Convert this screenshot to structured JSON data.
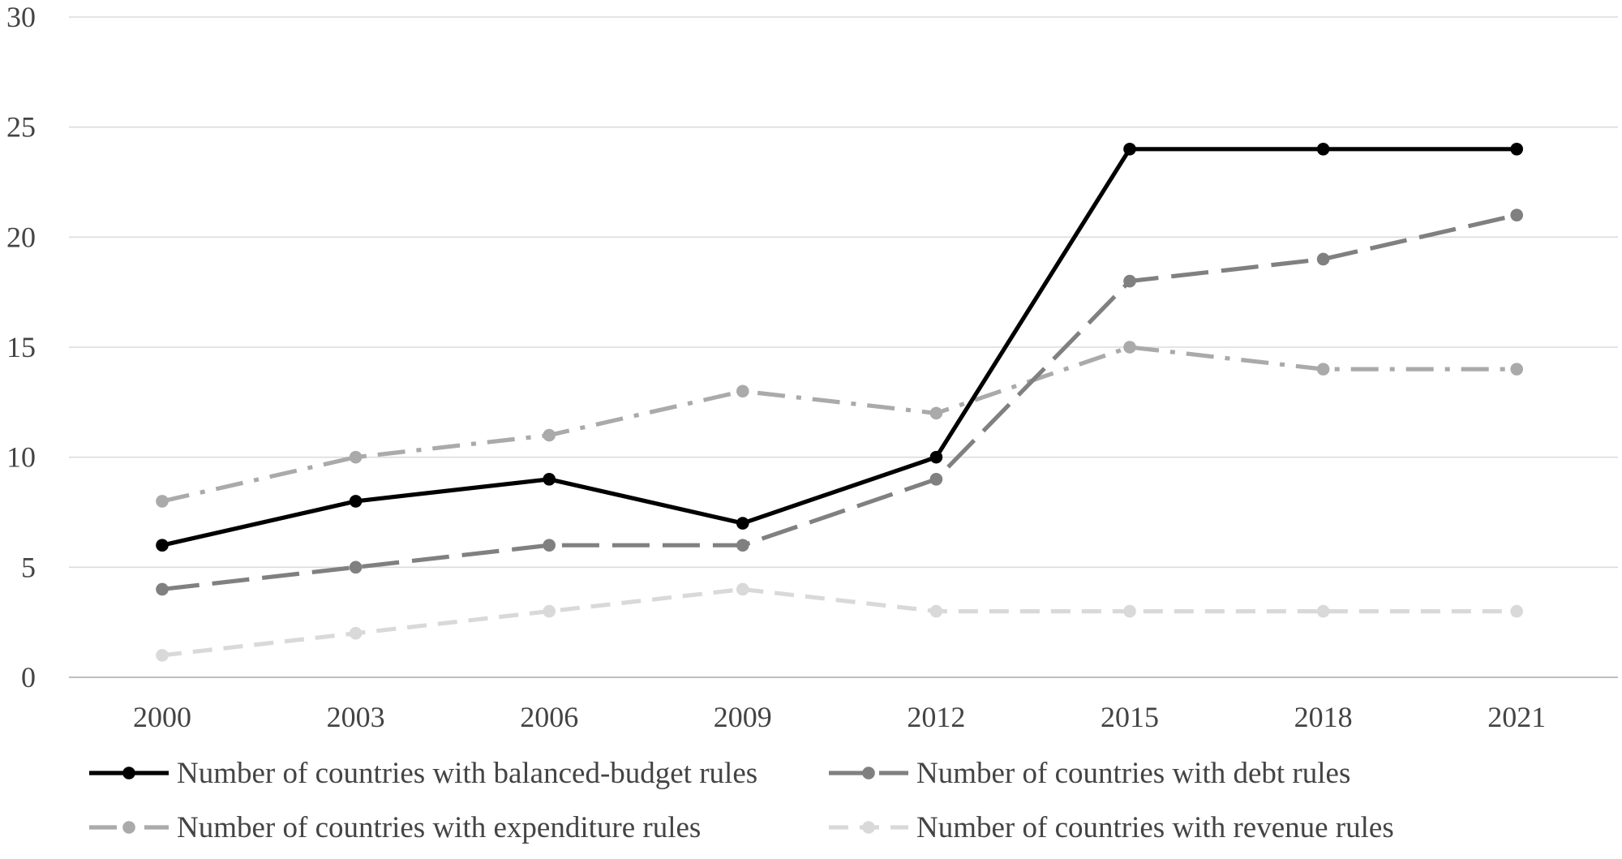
{
  "chart_data": {
    "type": "line",
    "title": "",
    "xlabel": "",
    "ylabel": "",
    "categories": [
      "2000",
      "2003",
      "2006",
      "2009",
      "2012",
      "2015",
      "2018",
      "2021"
    ],
    "ylim": [
      0,
      30
    ],
    "yticks": [
      0,
      5,
      10,
      15,
      20,
      25,
      30
    ],
    "grid": true,
    "legend_position": "bottom",
    "series": [
      {
        "name": "Number of countries with balanced-budget rules",
        "values": [
          6,
          8,
          9,
          7,
          10,
          24,
          24,
          24
        ],
        "color": "#000000",
        "style": "solid"
      },
      {
        "name": "Number of countries with debt rules",
        "values": [
          4,
          5,
          6,
          6,
          9,
          18,
          19,
          21
        ],
        "color": "#808080",
        "style": "long-dash"
      },
      {
        "name": "Number of countries with expenditure rules",
        "values": [
          8,
          10,
          11,
          13,
          12,
          15,
          14,
          14
        ],
        "color": "#aaaaaa",
        "style": "dash-dot"
      },
      {
        "name": "Number of countries with revenue rules",
        "values": [
          1,
          2,
          3,
          4,
          3,
          3,
          3,
          3
        ],
        "color": "#d9d9d9",
        "style": "dash"
      }
    ]
  }
}
